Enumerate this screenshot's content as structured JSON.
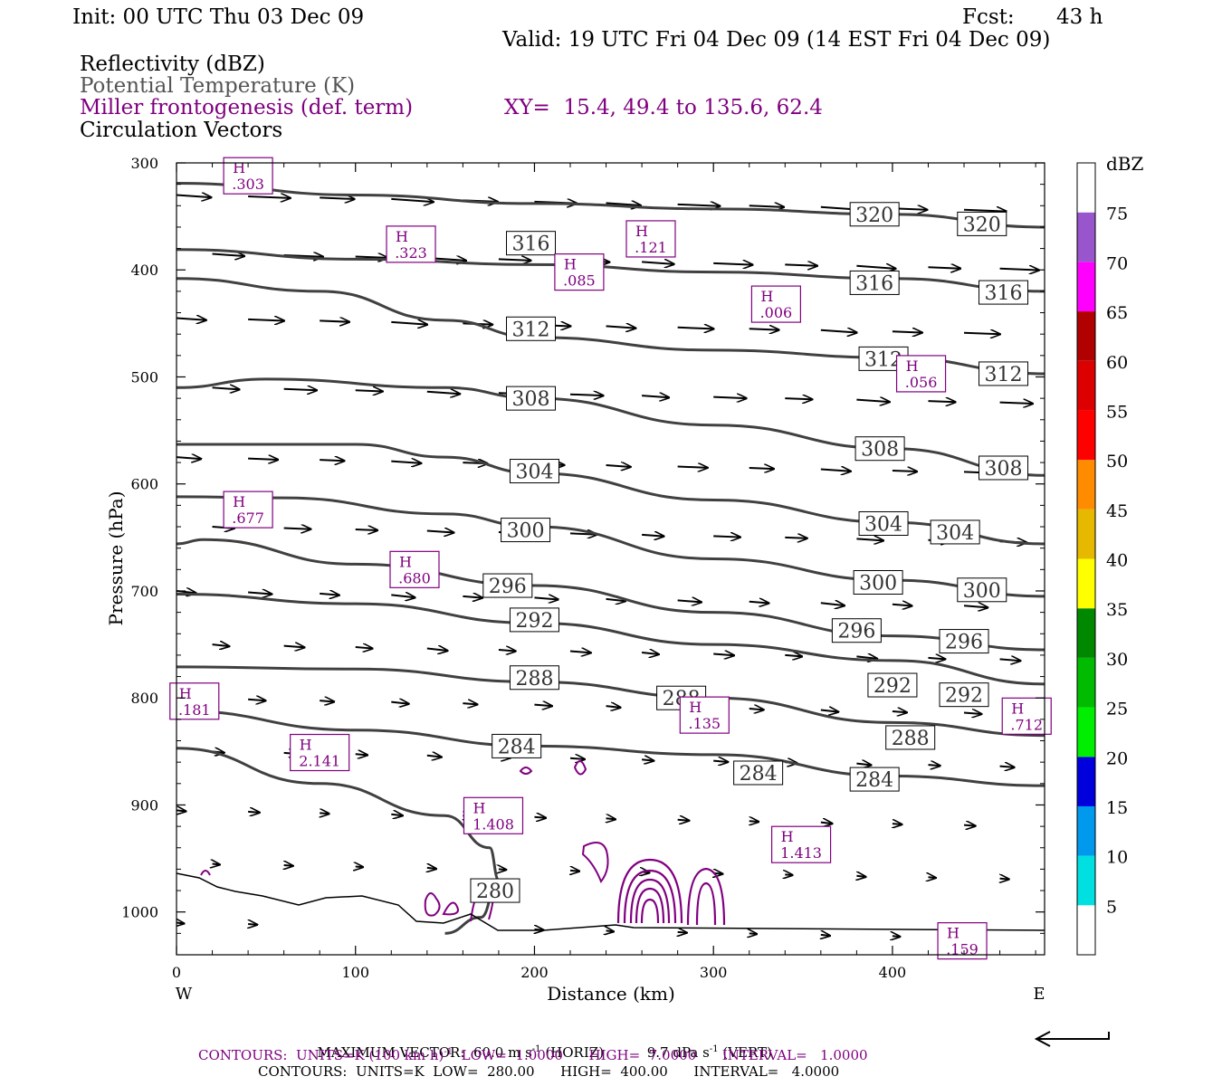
{
  "header": {
    "init": "Init: 00 UTC Thu 03 Dec 09",
    "fcst_label": "Fcst:",
    "fcst_value": "43 h",
    "valid": "Valid: 19 UTC Fri 04 Dec 09 (14 EST Fri 04 Dec 09)",
    "fields": [
      "Reflectivity (dBZ)",
      "Potential Temperature (K)",
      "Miller frontogenesis (def. term)",
      "Circulation Vectors"
    ],
    "xy": "XY=  15.4, 49.4 to 135.6, 62.4"
  },
  "colors": {
    "theta_contour": "#404040",
    "frontogenesis": "#800080",
    "vectors": "#000000"
  },
  "chart_data": {
    "type": "line",
    "title": "",
    "xlabel": "Distance (km)",
    "ylabel": "Pressure (hPa)",
    "xlim": [
      0,
      485
    ],
    "ylim": [
      1040,
      300
    ],
    "x_ticks": [
      0,
      100,
      200,
      300,
      400
    ],
    "y_ticks": [
      300,
      400,
      500,
      600,
      700,
      800,
      900,
      1000
    ],
    "x_end_labels": {
      "left": "W",
      "right": "E"
    },
    "theta_contours": [
      {
        "value": 320,
        "points": [
          [
            0,
            319
          ],
          [
            100,
            330
          ],
          [
            200,
            338
          ],
          [
            300,
            343
          ],
          [
            400,
            348
          ],
          [
            485,
            360
          ]
        ],
        "labels": [
          [
            390,
            348
          ],
          [
            450,
            357
          ]
        ]
      },
      {
        "value": 316,
        "points": [
          [
            0,
            381
          ],
          [
            100,
            390
          ],
          [
            200,
            395
          ],
          [
            300,
            402
          ],
          [
            400,
            408
          ],
          [
            485,
            420
          ]
        ],
        "labels": [
          [
            198,
            375
          ],
          [
            390,
            412
          ],
          [
            462,
            421
          ]
        ]
      },
      {
        "value": 312,
        "points": [
          [
            0,
            408
          ],
          [
            80,
            420
          ],
          [
            150,
            447
          ],
          [
            200,
            463
          ],
          [
            300,
            475
          ],
          [
            400,
            482
          ],
          [
            485,
            497
          ]
        ],
        "labels": [
          [
            198,
            455
          ],
          [
            395,
            483
          ],
          [
            462,
            497
          ]
        ]
      },
      {
        "value": 308,
        "points": [
          [
            0,
            510
          ],
          [
            50,
            502
          ],
          [
            150,
            510
          ],
          [
            200,
            520
          ],
          [
            300,
            545
          ],
          [
            400,
            567
          ],
          [
            485,
            592
          ]
        ],
        "labels": [
          [
            198,
            520
          ],
          [
            393,
            567
          ],
          [
            462,
            585
          ]
        ]
      },
      {
        "value": 304,
        "points": [
          [
            0,
            563
          ],
          [
            100,
            563
          ],
          [
            150,
            575
          ],
          [
            200,
            590
          ],
          [
            300,
            615
          ],
          [
            400,
            636
          ],
          [
            485,
            656
          ]
        ],
        "labels": [
          [
            200,
            588
          ],
          [
            395,
            637
          ],
          [
            435,
            645
          ]
        ]
      },
      {
        "value": 300,
        "points": [
          [
            0,
            612
          ],
          [
            60,
            613
          ],
          [
            150,
            628
          ],
          [
            200,
            640
          ],
          [
            300,
            670
          ],
          [
            400,
            690
          ],
          [
            485,
            705
          ]
        ],
        "labels": [
          [
            195,
            643
          ],
          [
            392,
            692
          ],
          [
            450,
            699
          ]
        ]
      },
      {
        "value": 296,
        "points": [
          [
            0,
            656
          ],
          [
            15,
            652
          ],
          [
            100,
            675
          ],
          [
            200,
            695
          ],
          [
            300,
            720
          ],
          [
            400,
            742
          ],
          [
            485,
            755
          ]
        ],
        "labels": [
          [
            185,
            695
          ],
          [
            380,
            737
          ],
          [
            440,
            747
          ]
        ]
      },
      {
        "value": 292,
        "points": [
          [
            0,
            703
          ],
          [
            100,
            712
          ],
          [
            200,
            730
          ],
          [
            300,
            750
          ],
          [
            400,
            765
          ],
          [
            485,
            787
          ]
        ],
        "labels": [
          [
            200,
            727
          ],
          [
            400,
            788
          ],
          [
            440,
            797
          ]
        ]
      },
      {
        "value": 288,
        "points": [
          [
            0,
            771
          ],
          [
            100,
            773
          ],
          [
            200,
            785
          ],
          [
            300,
            800
          ],
          [
            400,
            823
          ],
          [
            485,
            835
          ]
        ],
        "labels": [
          [
            200,
            781
          ],
          [
            282,
            800
          ],
          [
            410,
            837
          ]
        ]
      },
      {
        "value": 284,
        "points": [
          [
            0,
            812
          ],
          [
            100,
            830
          ],
          [
            200,
            845
          ],
          [
            300,
            853
          ],
          [
            400,
            873
          ],
          [
            485,
            882
          ]
        ],
        "labels": [
          [
            190,
            845
          ],
          [
            325,
            870
          ],
          [
            390,
            876
          ]
        ]
      },
      {
        "value": 280,
        "points": [
          [
            0,
            847
          ],
          [
            80,
            880
          ],
          [
            150,
            910
          ],
          [
            175,
            940
          ],
          [
            180,
            970
          ],
          [
            170,
            1005
          ],
          [
            150,
            1020
          ]
        ],
        "labels": [
          [
            178,
            980
          ]
        ]
      }
    ],
    "frontogenesis_maxima": [
      {
        "label": "H",
        "value": ".303",
        "x": 40,
        "y": 312
      },
      {
        "label": "H",
        "value": ".323",
        "x": 131,
        "y": 376
      },
      {
        "label": "H",
        "value": ".121",
        "x": 265,
        "y": 371
      },
      {
        "label": "H",
        "value": ".085",
        "x": 225,
        "y": 402
      },
      {
        "label": "H",
        "value": ".006",
        "x": 335,
        "y": 432
      },
      {
        "label": "H",
        "value": ".056",
        "x": 416,
        "y": 497
      },
      {
        "label": "H",
        "value": ".677",
        "x": 40,
        "y": 624
      },
      {
        "label": "H",
        "value": ".680",
        "x": 133,
        "y": 680
      },
      {
        "label": "H",
        "value": ".181",
        "x": 10,
        "y": 803
      },
      {
        "label": "H",
        "value": ".135",
        "x": 295,
        "y": 816
      },
      {
        "label": "H",
        "value": ".712",
        "x": 475,
        "y": 817
      },
      {
        "label": "H",
        "value": "2.141",
        "x": 80,
        "y": 851
      },
      {
        "label": "H",
        "value": "1.408",
        "x": 177,
        "y": 910
      },
      {
        "label": "H",
        "value": "1.413",
        "x": 349,
        "y": 937
      },
      {
        "label": "H",
        "value": ".159",
        "x": 439,
        "y": 1027
      }
    ],
    "colorbar": {
      "title": "dBZ",
      "levels": [
        5,
        10,
        15,
        20,
        25,
        30,
        35,
        40,
        45,
        50,
        55,
        60,
        65,
        70,
        75
      ],
      "colors": [
        "#ffffff",
        "#00e0e0",
        "#0099ee",
        "#0000dd",
        "#00ee00",
        "#00bb00",
        "#008800",
        "#ffff00",
        "#e6b800",
        "#ff8c00",
        "#ff0000",
        "#dd0000",
        "#b00000",
        "#ff00ff",
        "#9955cc",
        "#ffffff"
      ]
    }
  },
  "footer": {
    "max_vector_label": "MAXIMUM VECTOR:",
    "max_vector_horiz": "60.0 m s",
    "max_vector_horiz_unit": "(HORIZ)",
    "max_vector_vert": "9.7 dPa s",
    "max_vector_vert_unit": "(VERT)",
    "contours_1": "CONTOURS:  UNITS=K (100 km h)",
    "contours_1_rest": "  LOW=  1.0000      HIGH=  7.0000      INTERVAL=   1.0000",
    "contours_2": "CONTOURS:  UNITS=K  LOW=  280.00      HIGH=  400.00      INTERVAL=   4.0000",
    "exponent": "-1"
  }
}
